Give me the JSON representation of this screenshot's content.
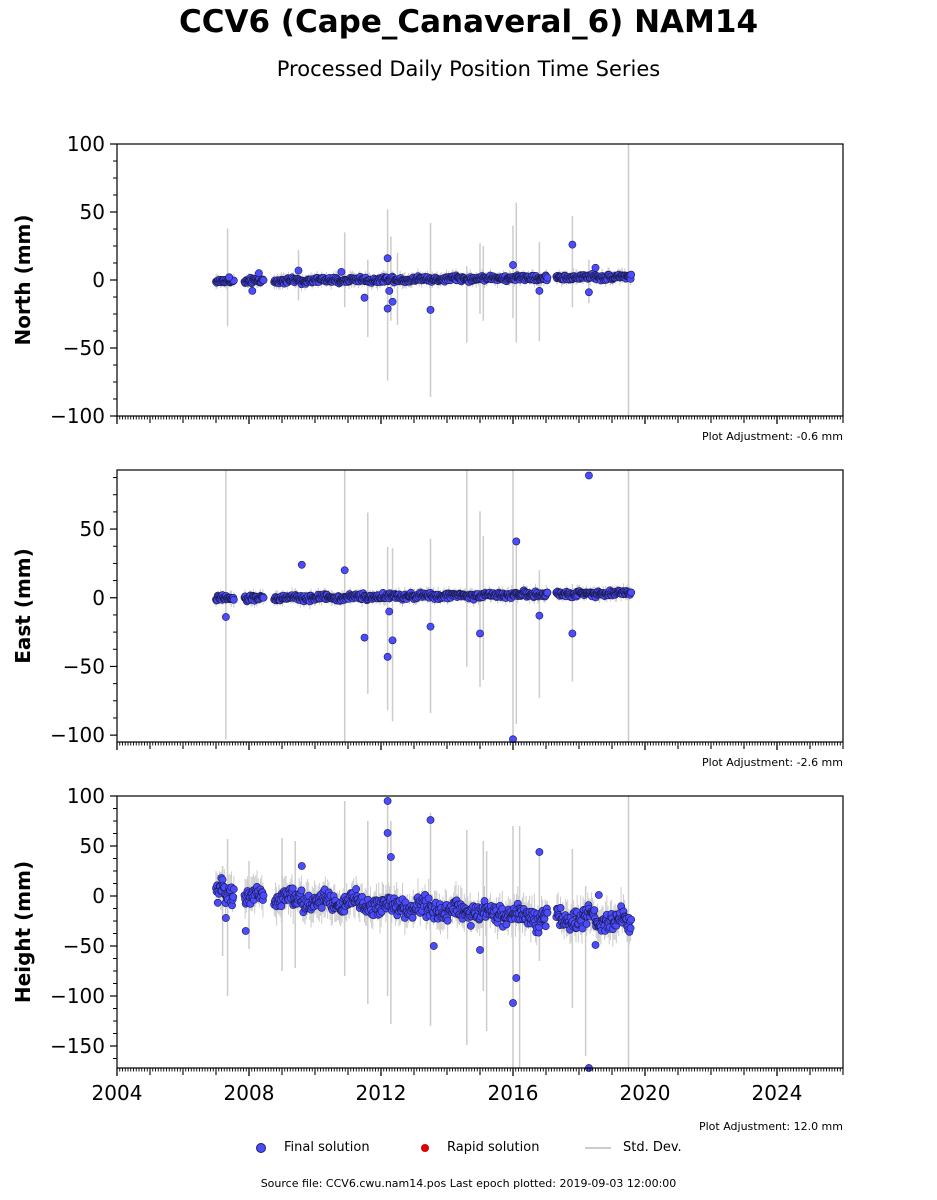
{
  "title": "CCV6 (Cape_Canaveral_6) NAM14",
  "subtitle": "Processed Daily Position Time Series",
  "legend": {
    "final_label": "Final solution",
    "rapid_label": "Rapid solution",
    "std_label": "Std. Dev."
  },
  "footer": "Source file: CCV6.cwu.nam14.pos  Last epoch plotted: 2019-09-03 12:00:00",
  "colors": {
    "final_fill": "#4b4bff",
    "final_edge": "#1a1a4a",
    "rapid": "#e00000",
    "std_dev": "#cccccc"
  },
  "chart_data": [
    {
      "type": "scatter",
      "ylabel": "North (mm)",
      "ylim": [
        -100,
        100
      ],
      "yticks": [
        100,
        50,
        0,
        -50,
        -100
      ],
      "yticklabels": [
        "100",
        "50",
        "0",
        "−50",
        "−100"
      ],
      "xlim": [
        2004,
        2026
      ],
      "adjustment": "Plot Adjustment: -0.6 mm",
      "trend": [
        [
          2007.0,
          -1.2
        ],
        [
          2019.6,
          2.5
        ]
      ],
      "scatter": 1.3,
      "outliers": [
        [
          2007.4,
          2
        ],
        [
          2008.1,
          -8
        ],
        [
          2008.3,
          5
        ],
        [
          2009.5,
          7
        ],
        [
          2010.8,
          6
        ],
        [
          2011.5,
          -13
        ],
        [
          2012.2,
          16
        ],
        [
          2012.2,
          -21
        ],
        [
          2012.25,
          -8
        ],
        [
          2012.35,
          -16
        ],
        [
          2013.5,
          -22
        ],
        [
          2016.0,
          11
        ],
        [
          2016.8,
          -8
        ],
        [
          2017.8,
          26
        ],
        [
          2018.3,
          -9
        ],
        [
          2018.5,
          9
        ]
      ],
      "errorbars": [
        [
          2007.35,
          -34,
          38
        ],
        [
          2009.5,
          -15,
          22
        ],
        [
          2010.9,
          -20,
          35
        ],
        [
          2011.6,
          -42,
          15
        ],
        [
          2012.2,
          -74,
          52
        ],
        [
          2012.3,
          -30,
          32
        ],
        [
          2012.5,
          -33,
          20
        ],
        [
          2013.5,
          -86,
          42
        ],
        [
          2014.6,
          -46,
          10
        ],
        [
          2015.0,
          -25,
          27
        ],
        [
          2015.1,
          -30,
          25
        ],
        [
          2016.0,
          -28,
          40
        ],
        [
          2016.1,
          -46,
          57
        ],
        [
          2016.8,
          -45,
          28
        ],
        [
          2017.8,
          -20,
          47
        ],
        [
          2018.3,
          -17,
          15
        ],
        [
          2019.5,
          -100,
          100
        ]
      ]
    },
    {
      "type": "scatter",
      "ylabel": "East (mm)",
      "ylim": [
        -105,
        93
      ],
      "yticks": [
        50,
        0,
        -50,
        -100
      ],
      "yticklabels": [
        "50",
        "0",
        "−50",
        "−100"
      ],
      "xlim": [
        2004,
        2026
      ],
      "adjustment": "Plot Adjustment: -2.6 mm",
      "trend": [
        [
          2007.0,
          -1.0
        ],
        [
          2019.6,
          3.5
        ]
      ],
      "scatter": 1.4,
      "outliers": [
        [
          2007.3,
          -14
        ],
        [
          2009.6,
          24
        ],
        [
          2010.9,
          20
        ],
        [
          2011.5,
          -29
        ],
        [
          2012.2,
          -43
        ],
        [
          2012.25,
          -10
        ],
        [
          2012.35,
          -31
        ],
        [
          2013.5,
          -21
        ],
        [
          2015.0,
          -26
        ],
        [
          2016.0,
          -103
        ],
        [
          2016.1,
          41
        ],
        [
          2016.8,
          -13
        ],
        [
          2017.8,
          -26
        ],
        [
          2018.3,
          89
        ]
      ],
      "errorbars": [
        [
          2007.3,
          -103,
          93
        ],
        [
          2010.9,
          -105,
          93
        ],
        [
          2011.6,
          -70,
          62
        ],
        [
          2012.2,
          -82,
          37
        ],
        [
          2012.35,
          -90,
          36
        ],
        [
          2013.5,
          -84,
          43
        ],
        [
          2014.6,
          -50,
          93
        ],
        [
          2015.0,
          -65,
          63
        ],
        [
          2015.1,
          -60,
          45
        ],
        [
          2016.0,
          -105,
          93
        ],
        [
          2016.1,
          -92,
          40
        ],
        [
          2016.8,
          -73,
          20
        ],
        [
          2017.8,
          -61,
          10
        ],
        [
          2019.5,
          -105,
          93
        ]
      ]
    },
    {
      "type": "scatter",
      "ylabel": "Height (mm)",
      "ylim": [
        -172,
        100
      ],
      "yticks": [
        100,
        50,
        0,
        -50,
        -100,
        -150
      ],
      "yticklabels": [
        "100",
        "50",
        "0",
        "−50",
        "−100",
        "−150"
      ],
      "xlim": [
        2004,
        2026
      ],
      "xticks": [
        2004,
        2008,
        2012,
        2016,
        2020,
        2024
      ],
      "xticklabels": [
        "2004",
        "2008",
        "2012",
        "2016",
        "2020",
        "2024"
      ],
      "adjustment": "Plot Adjustment: 12.0 mm",
      "trend": [
        [
          2007.0,
          2.0
        ],
        [
          2019.6,
          -27.0
        ]
      ],
      "scatter": 7.0,
      "outliers": [
        [
          2007.3,
          -22
        ],
        [
          2007.9,
          -35
        ],
        [
          2009.6,
          30
        ],
        [
          2012.2,
          95
        ],
        [
          2012.2,
          63
        ],
        [
          2012.3,
          39
        ],
        [
          2013.5,
          76
        ],
        [
          2013.6,
          -50
        ],
        [
          2015.0,
          -54
        ],
        [
          2016.0,
          -107
        ],
        [
          2016.1,
          -82
        ],
        [
          2016.8,
          44
        ],
        [
          2018.3,
          -172
        ],
        [
          2018.5,
          -49
        ],
        [
          2018.6,
          1
        ]
      ],
      "errorbars": [
        [
          2007.2,
          -60,
          30
        ],
        [
          2007.35,
          -100,
          57
        ],
        [
          2008.0,
          -53,
          35
        ],
        [
          2009.0,
          -75,
          58
        ],
        [
          2009.4,
          -72,
          55
        ],
        [
          2010.9,
          -80,
          95
        ],
        [
          2011.6,
          -108,
          75
        ],
        [
          2012.2,
          -100,
          95
        ],
        [
          2012.3,
          -128,
          75
        ],
        [
          2013.5,
          -130,
          83
        ],
        [
          2014.6,
          -149,
          66
        ],
        [
          2015.1,
          -95,
          55
        ],
        [
          2015.2,
          -135,
          45
        ],
        [
          2016.0,
          -172,
          70
        ],
        [
          2016.2,
          -172,
          70
        ],
        [
          2016.8,
          -65,
          45
        ],
        [
          2017.8,
          -112,
          47
        ],
        [
          2018.2,
          -160,
          10
        ],
        [
          2019.5,
          -172,
          100
        ]
      ]
    }
  ]
}
